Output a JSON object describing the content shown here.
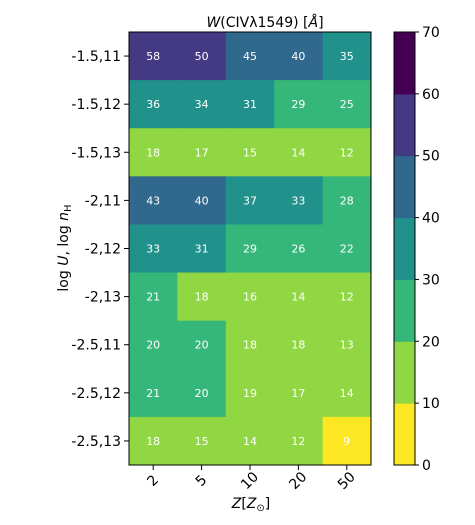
{
  "chart_data": {
    "type": "heatmap",
    "title": "W(CIVλ1549) [Å]",
    "xlabel": "Z[Z⊙]",
    "ylabel": "log U, log nH",
    "x_categories": [
      "2",
      "5",
      "10",
      "20",
      "50"
    ],
    "y_categories": [
      "-1.5,11",
      "-1.5,12",
      "-1.5,13",
      "-2,11",
      "-2,12",
      "-2,13",
      "-2.5,11",
      "-2.5,12",
      "-2.5,13"
    ],
    "values": [
      [
        58,
        50,
        45,
        40,
        35
      ],
      [
        36,
        34,
        31,
        29,
        25
      ],
      [
        18,
        17,
        15,
        14,
        12
      ],
      [
        43,
        40,
        37,
        33,
        28
      ],
      [
        33,
        31,
        29,
        26,
        22
      ],
      [
        21,
        18,
        16,
        14,
        12
      ],
      [
        20,
        20,
        18,
        18,
        13
      ],
      [
        21,
        20,
        19,
        17,
        14
      ],
      [
        18,
        15,
        14,
        12,
        9
      ]
    ],
    "colorbar": {
      "range": [
        0,
        70
      ],
      "ticks": [
        "0",
        "10",
        "20",
        "30",
        "40",
        "50",
        "60",
        "70"
      ],
      "bins": [
        {
          "min": 0,
          "max": 10,
          "color": "#fde725"
        },
        {
          "min": 10,
          "max": 20,
          "color": "#90d743"
        },
        {
          "min": 20,
          "max": 30,
          "color": "#35b779"
        },
        {
          "min": 30,
          "max": 40,
          "color": "#21918c"
        },
        {
          "min": 40,
          "max": 50,
          "color": "#31688e"
        },
        {
          "min": 50,
          "max": 60,
          "color": "#443983"
        },
        {
          "min": 60,
          "max": 70,
          "color": "#440154"
        }
      ]
    }
  }
}
